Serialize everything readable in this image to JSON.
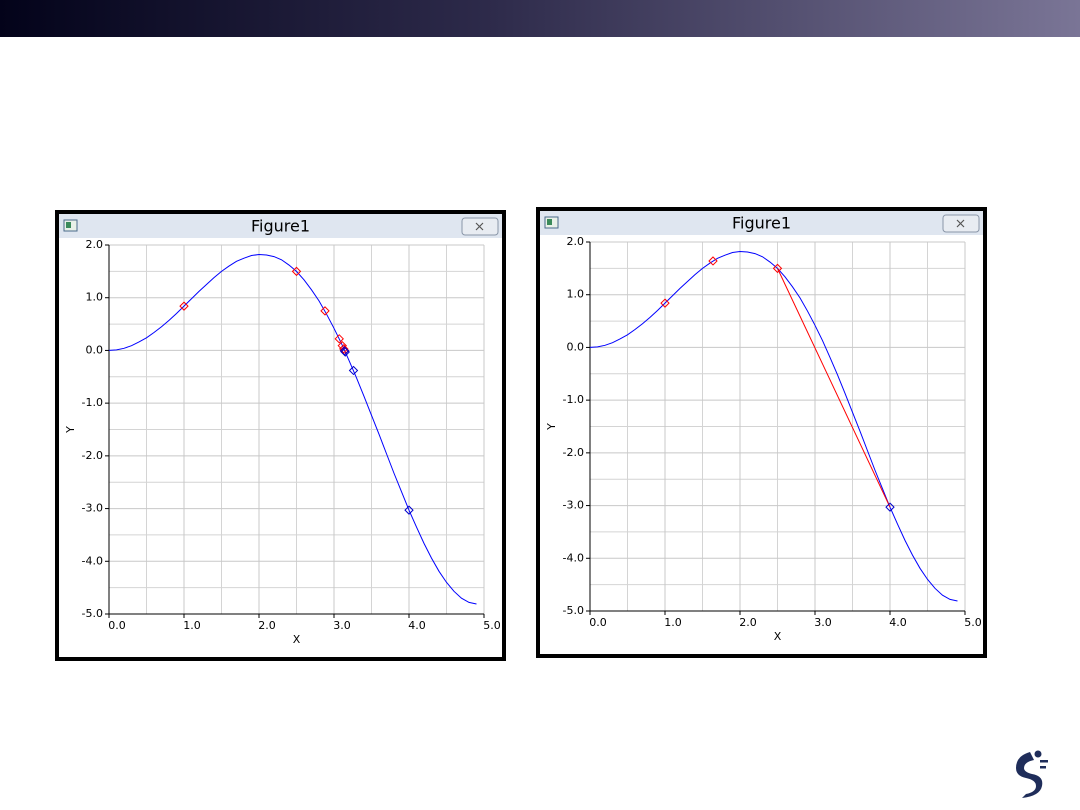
{
  "chart_data": [
    {
      "type": "line",
      "title": "Figure1",
      "xlabel": "X",
      "ylabel": "Y",
      "xlim": [
        0,
        5
      ],
      "ylim": [
        -5,
        2
      ],
      "grid": true,
      "xticks": [
        {
          "value": 0,
          "label": "0.0"
        },
        {
          "value": 1,
          "label": "1.0"
        },
        {
          "value": 2,
          "label": "2.0"
        },
        {
          "value": 3,
          "label": "3.0"
        },
        {
          "value": 4,
          "label": "4.0"
        },
        {
          "value": 5,
          "label": "5.0"
        }
      ],
      "yticks": [
        {
          "value": 2,
          "label": "2.0"
        },
        {
          "value": 1,
          "label": "1.0"
        },
        {
          "value": 0,
          "label": "0.0"
        },
        {
          "value": -1,
          "label": "-1.0"
        },
        {
          "value": -2,
          "label": "-2.0"
        },
        {
          "value": -3,
          "label": "-3.0"
        },
        {
          "value": -4,
          "label": "-4.0"
        },
        {
          "value": -5,
          "label": "-5.0"
        }
      ],
      "xminorticks": [
        0.5,
        1.5,
        2.5,
        3.5,
        4.5
      ],
      "yminorticks": [
        1.5,
        0.5,
        -0.5,
        -1.5,
        -2.5,
        -3.5,
        -4.5
      ],
      "series": [
        {
          "style": "line",
          "color": "#0000ff",
          "x": [
            0,
            0.1,
            0.2,
            0.3,
            0.4,
            0.5,
            0.6,
            0.7,
            0.8,
            0.9,
            1.0,
            1.1,
            1.2,
            1.3,
            1.4,
            1.5,
            1.6,
            1.7,
            1.8,
            1.9,
            2.0,
            2.1,
            2.2,
            2.3,
            2.4,
            2.5,
            2.6,
            2.7,
            2.8,
            2.9,
            3.0,
            3.1,
            3.2,
            3.3,
            3.4,
            3.5,
            3.6,
            3.7,
            3.8,
            3.9,
            4.0,
            4.1,
            4.2,
            4.3,
            4.4,
            4.5,
            4.6,
            4.7,
            4.8,
            4.9
          ],
          "values": [
            0,
            0.01,
            0.04,
            0.09,
            0.16,
            0.24,
            0.34,
            0.45,
            0.57,
            0.7,
            0.84,
            0.98,
            1.12,
            1.25,
            1.38,
            1.5,
            1.6,
            1.69,
            1.75,
            1.8,
            1.82,
            1.81,
            1.78,
            1.72,
            1.62,
            1.5,
            1.34,
            1.15,
            0.94,
            0.69,
            0.42,
            0.13,
            -0.19,
            -0.52,
            -0.87,
            -1.23,
            -1.59,
            -1.96,
            -2.33,
            -2.68,
            -3.03,
            -3.35,
            -3.66,
            -3.94,
            -4.19,
            -4.4,
            -4.57,
            -4.7,
            -4.78,
            -4.81
          ]
        },
        {
          "style": "marker",
          "color": "#ff0000",
          "x": [
            1,
            2.5,
            2.88,
            3.07,
            3.11,
            3.13,
            3.14
          ],
          "values": [
            0.84,
            1.5,
            0.75,
            0.22,
            0.09,
            0.03,
            0
          ]
        },
        {
          "style": "marker",
          "color": "#0000cc",
          "x": [
            3.14,
            3.15,
            3.26,
            4
          ],
          "values": [
            -0.01,
            -0.03,
            -0.38,
            -3.03
          ]
        }
      ]
    },
    {
      "type": "line",
      "title": "Figure1",
      "xlabel": "X",
      "ylabel": "Y",
      "xlim": [
        0,
        5
      ],
      "ylim": [
        -5,
        2
      ],
      "grid": true,
      "xticks": [
        {
          "value": 0,
          "label": "0.0"
        },
        {
          "value": 1,
          "label": "1.0"
        },
        {
          "value": 2,
          "label": "2.0"
        },
        {
          "value": 3,
          "label": "3.0"
        },
        {
          "value": 4,
          "label": "4.0"
        },
        {
          "value": 5,
          "label": "5.0"
        }
      ],
      "yticks": [
        {
          "value": 2,
          "label": "2.0"
        },
        {
          "value": 1,
          "label": "1.0"
        },
        {
          "value": 0,
          "label": "0.0"
        },
        {
          "value": -1,
          "label": "-1.0"
        },
        {
          "value": -2,
          "label": "-2.0"
        },
        {
          "value": -3,
          "label": "-3.0"
        },
        {
          "value": -4,
          "label": "-4.0"
        },
        {
          "value": -5,
          "label": "-5.0"
        }
      ],
      "xminorticks": [
        0.5,
        1.5,
        2.5,
        3.5,
        4.5
      ],
      "yminorticks": [
        1.5,
        0.5,
        -0.5,
        -1.5,
        -2.5,
        -3.5,
        -4.5
      ],
      "series": [
        {
          "style": "line",
          "color": "#0000ff",
          "x": [
            0,
            0.1,
            0.2,
            0.3,
            0.4,
            0.5,
            0.6,
            0.7,
            0.8,
            0.9,
            1.0,
            1.1,
            1.2,
            1.3,
            1.4,
            1.5,
            1.6,
            1.7,
            1.8,
            1.9,
            2.0,
            2.1,
            2.2,
            2.3,
            2.4,
            2.5,
            2.6,
            2.7,
            2.8,
            2.9,
            3.0,
            3.1,
            3.2,
            3.3,
            3.4,
            3.5,
            3.6,
            3.7,
            3.8,
            3.9,
            4.0,
            4.1,
            4.2,
            4.3,
            4.4,
            4.5,
            4.6,
            4.7,
            4.8,
            4.9
          ],
          "values": [
            0,
            0.01,
            0.04,
            0.09,
            0.16,
            0.24,
            0.34,
            0.45,
            0.57,
            0.7,
            0.84,
            0.98,
            1.12,
            1.25,
            1.38,
            1.5,
            1.6,
            1.69,
            1.75,
            1.8,
            1.82,
            1.81,
            1.78,
            1.72,
            1.62,
            1.5,
            1.34,
            1.15,
            0.94,
            0.69,
            0.42,
            0.13,
            -0.19,
            -0.52,
            -0.87,
            -1.23,
            -1.59,
            -1.96,
            -2.33,
            -2.68,
            -3.03,
            -3.35,
            -3.66,
            -3.94,
            -4.19,
            -4.4,
            -4.57,
            -4.7,
            -4.78,
            -4.81
          ]
        },
        {
          "style": "line",
          "color": "#ff0000",
          "x": [
            2.5,
            4
          ],
          "values": [
            1.5,
            -3.03
          ]
        },
        {
          "style": "marker",
          "color": "#ff0000",
          "x": [
            1,
            1.64,
            2.5
          ],
          "values": [
            0.84,
            1.64,
            1.5
          ]
        },
        {
          "style": "marker",
          "color": "#0000cc",
          "x": [
            4
          ],
          "values": [
            -3.03
          ]
        }
      ]
    }
  ]
}
